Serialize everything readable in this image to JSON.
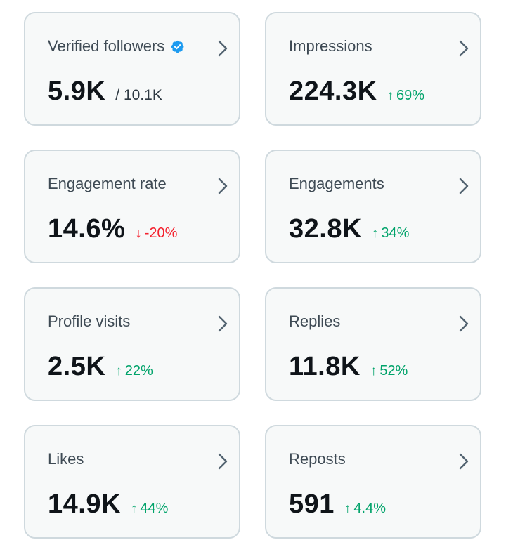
{
  "colors": {
    "card_bg": "#f7f9f9",
    "card_border": "#cfd9de",
    "text_primary": "#0f1419",
    "text_secondary": "#3e4a54",
    "up": "#00a36a",
    "down": "#f4212e",
    "verified": "#1d9bf0"
  },
  "cards": [
    {
      "label": "Verified followers",
      "value": "5.9K",
      "sub": "/ 10.1K",
      "icon": "verified-badge-icon"
    },
    {
      "label": "Impressions",
      "value": "224.3K",
      "change": "69%",
      "direction": "up"
    },
    {
      "label": "Engagement rate",
      "value": "14.6%",
      "change": "-20%",
      "direction": "down"
    },
    {
      "label": "Engagements",
      "value": "32.8K",
      "change": "34%",
      "direction": "up"
    },
    {
      "label": "Profile visits",
      "value": "2.5K",
      "change": "22%",
      "direction": "up"
    },
    {
      "label": "Replies",
      "value": "11.8K",
      "change": "52%",
      "direction": "up"
    },
    {
      "label": "Likes",
      "value": "14.9K",
      "change": "44%",
      "direction": "up"
    },
    {
      "label": "Reposts",
      "value": "591",
      "change": "4.4%",
      "direction": "up"
    }
  ],
  "arrows": {
    "up": "↑",
    "down": "↓"
  }
}
